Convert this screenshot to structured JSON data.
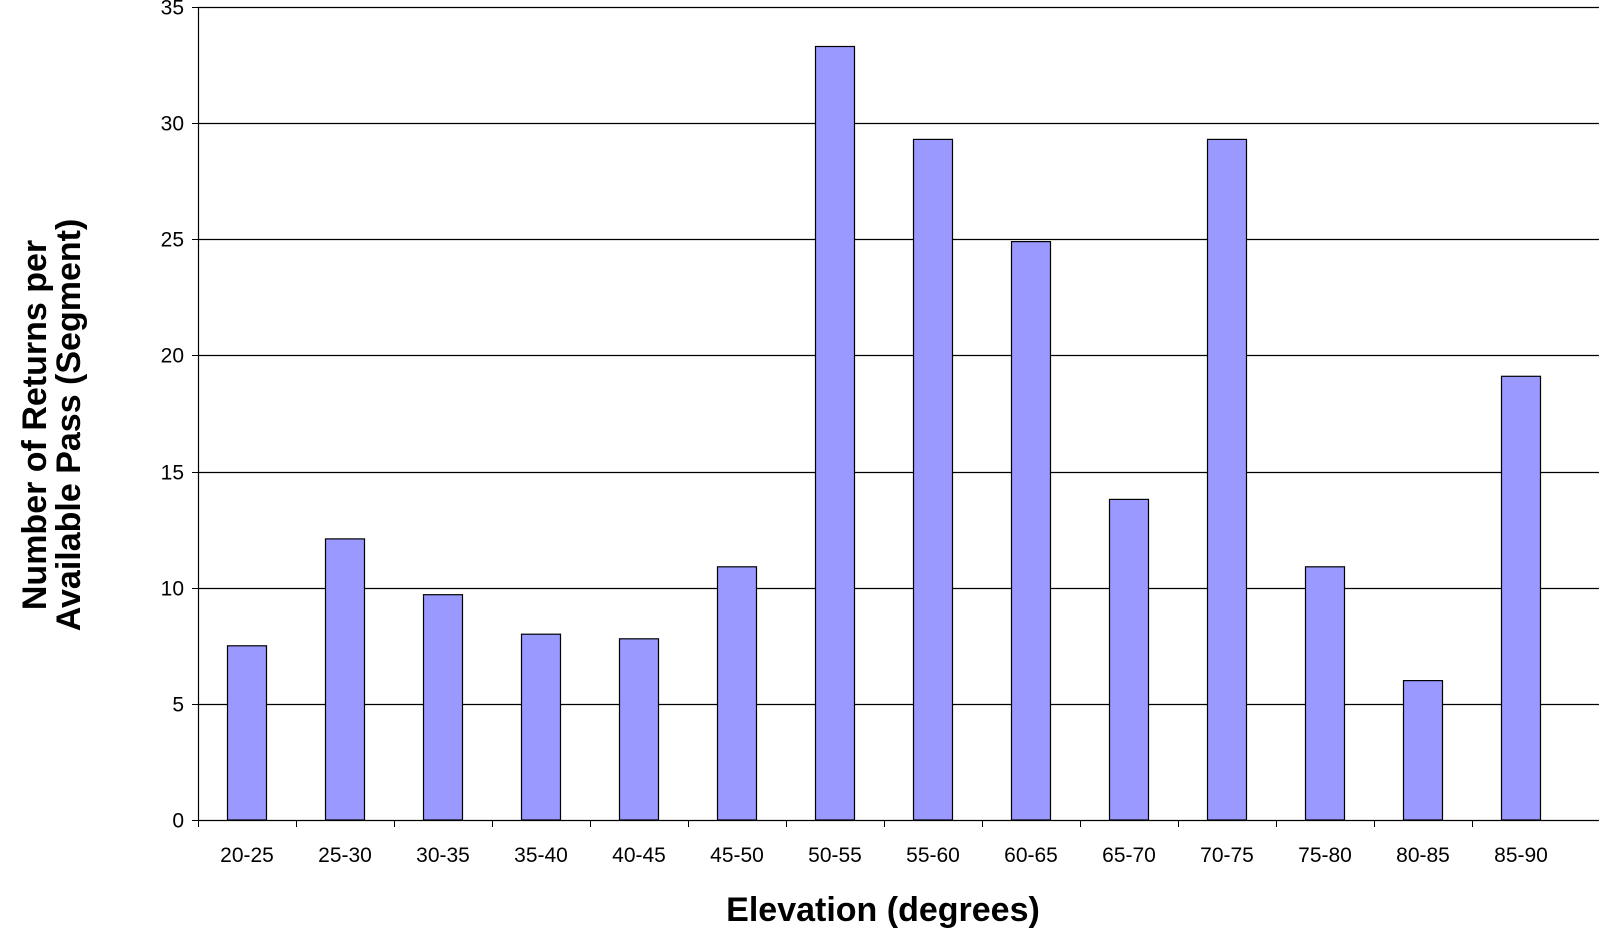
{
  "chart_data": {
    "type": "bar",
    "title": "",
    "xlabel": "Elevation (degrees)",
    "ylabel_lines": [
      "Number of Returns per",
      "Available Pass (Segment)"
    ],
    "categories": [
      "20-25",
      "25-30",
      "30-35",
      "35-40",
      "40-45",
      "45-50",
      "50-55",
      "55-60",
      "60-65",
      "65-70",
      "70-75",
      "75-80",
      "80-85",
      "85-90"
    ],
    "values": [
      7.5,
      12.1,
      9.7,
      8.0,
      7.8,
      10.9,
      33.3,
      29.3,
      24.9,
      13.8,
      29.3,
      10.9,
      6.0,
      19.1
    ],
    "ylim": [
      0,
      35
    ],
    "yticks": [
      0,
      5,
      10,
      15,
      20,
      25,
      30,
      35
    ],
    "grid": true,
    "bar_color": "#9999ff",
    "bar_stroke": "#000000",
    "legend": "none"
  }
}
